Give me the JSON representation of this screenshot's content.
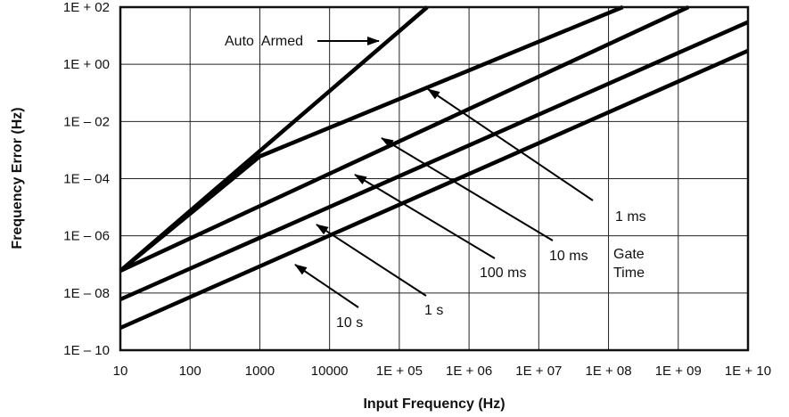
{
  "chart_data": {
    "type": "line",
    "xlabel": "Input Frequency (Hz)",
    "ylabel": "Frequency Error (Hz)",
    "x_scale": "log",
    "y_scale": "log",
    "xlim": [
      10,
      10000000000.0
    ],
    "ylim": [
      1e-10,
      100.0
    ],
    "grid": true,
    "x_ticks": [
      {
        "value": 10,
        "label": "10"
      },
      {
        "value": 100,
        "label": "100"
      },
      {
        "value": 1000,
        "label": "1000"
      },
      {
        "value": 10000,
        "label": "10000"
      },
      {
        "value": 100000,
        "label": "1E + 05"
      },
      {
        "value": 1000000,
        "label": "1E + 06"
      },
      {
        "value": 10000000,
        "label": "1E + 07"
      },
      {
        "value": 100000000,
        "label": "1E + 08"
      },
      {
        "value": 1000000000,
        "label": "1E + 09"
      },
      {
        "value": 10000000000,
        "label": "1E + 10"
      }
    ],
    "y_ticks": [
      {
        "value": 100.0,
        "label": "1E + 02"
      },
      {
        "value": 1.0,
        "label": "1E + 00"
      },
      {
        "value": 0.01,
        "label": "1E – 02"
      },
      {
        "value": 0.0001,
        "label": "1E – 04"
      },
      {
        "value": 1e-06,
        "label": "1E – 06"
      },
      {
        "value": 1e-08,
        "label": "1E – 08"
      },
      {
        "value": 1e-10,
        "label": "1E – 10"
      }
    ],
    "series": [
      {
        "points": [
          [
            10,
            6e-08
          ],
          [
            251000,
            100.0
          ]
        ]
      },
      {
        "points": [
          [
            10,
            6e-08
          ],
          [
            130,
            1e-05
          ],
          [
            1000,
            0.0006
          ],
          [
            160000000.0,
            100.0
          ]
        ]
      },
      {
        "points": [
          [
            10,
            6e-08
          ],
          [
            1400000000.0,
            100.0
          ]
        ]
      },
      {
        "points": [
          [
            10,
            6e-09
          ],
          [
            10000000000.0,
            30.0
          ]
        ]
      },
      {
        "points": [
          [
            10,
            6e-10
          ],
          [
            10000000000.0,
            3.0
          ]
        ]
      }
    ],
    "annotations": {
      "auto_armed": "Auto  Armed",
      "ms1": "1 ms",
      "ms10": "10 ms",
      "ms100": "100 ms",
      "s1": "1 s",
      "s10": "10 s",
      "gate": "Gate",
      "time": "Time"
    }
  }
}
